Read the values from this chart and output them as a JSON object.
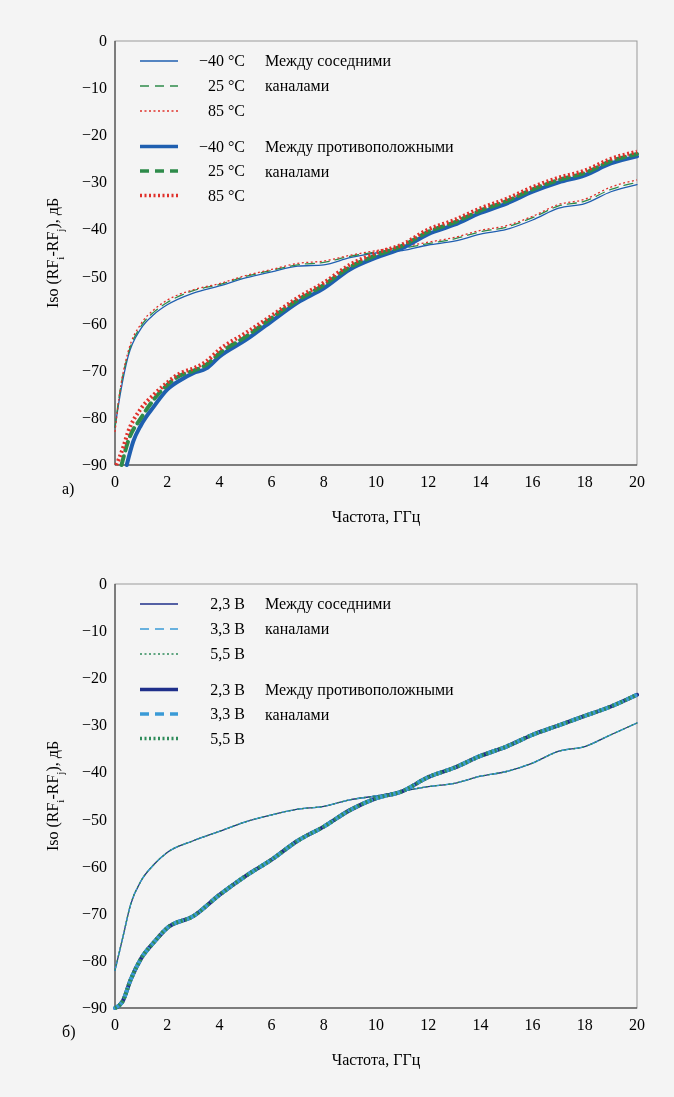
{
  "chart_data": [
    {
      "type": "line",
      "xlabel": "Частота, ГГц",
      "ylabel": "Iso (RF$_{i}$-RF$_{j}$), дБ",
      "xlim": [
        0,
        20
      ],
      "ylim": [
        -90,
        0
      ],
      "xticks": [
        0,
        2,
        4,
        6,
        8,
        10,
        12,
        14,
        16,
        18,
        20
      ],
      "yticks": [
        {
          "value": 0,
          "label": "0"
        },
        {
          "value": -10,
          "label": "−10"
        },
        {
          "value": -20,
          "label": "−20"
        },
        {
          "value": -30,
          "label": "−30"
        },
        {
          "value": -40,
          "label": "−40"
        },
        {
          "value": -50,
          "label": "−50"
        },
        {
          "value": -60,
          "label": "−60"
        },
        {
          "value": -70,
          "label": "−70"
        },
        {
          "value": -80,
          "label": "−80"
        },
        {
          "value": -90,
          "label": "−90"
        }
      ],
      "grid": false,
      "legend": "top left",
      "marker": "none",
      "annotations": [
        "а)",
        "Между соседними каналами",
        "Между противоположными каналами"
      ],
      "x": [
        0,
        0.2,
        0.5,
        1,
        1.5,
        2,
        3,
        4,
        5,
        6,
        7,
        8,
        9,
        10,
        11,
        12,
        13,
        14,
        15,
        16,
        17,
        18,
        19,
        20
      ],
      "series": [
        {
          "name": "−40 °C",
          "color": "#1f5fb0",
          "line_style": "solid",
          "values": [
            -82,
            -75,
            -67,
            -61,
            -58,
            -56,
            -53.5,
            -52,
            -50.3,
            -49,
            -47.8,
            -47.5,
            -46,
            -45,
            -44.5,
            -43.3,
            -42.5,
            -41,
            -40,
            -38,
            -35.5,
            -34.5,
            -32,
            -30.5
          ]
        },
        {
          "name": "25 °C",
          "color": "#2e8b4a",
          "line_style": "dashed",
          "values": [
            -82,
            -74,
            -66.5,
            -60.5,
            -57.5,
            -55.5,
            -53,
            -51.7,
            -50,
            -48.7,
            -47.5,
            -47,
            -45.7,
            -44.8,
            -44,
            -43,
            -42,
            -40.5,
            -39.5,
            -37.5,
            -35,
            -34,
            -31.5,
            -30
          ]
        },
        {
          "name": "85 °C",
          "color": "#e0302a",
          "line_style": "dotted",
          "values": [
            -83,
            -74,
            -66,
            -60,
            -57,
            -55,
            -52.8,
            -51.5,
            -49.8,
            -48.5,
            -47.2,
            -46.7,
            -45.5,
            -44.5,
            -43.7,
            -42.7,
            -41.7,
            -40.2,
            -39.2,
            -37.2,
            -34.7,
            -33.6,
            -31,
            -29.5
          ]
        },
        {
          "name": "−40 °C",
          "color": "#1f5fb0",
          "line_style": "solid",
          "x": [
            0.45,
            0.7,
            1,
            1.5,
            2,
            2.5,
            3,
            3.5,
            4,
            5,
            6,
            7,
            8,
            9,
            10,
            11,
            12,
            13,
            14,
            15,
            16,
            17,
            18,
            19,
            20
          ],
          "values": [
            -90,
            -85,
            -81.5,
            -77.5,
            -74,
            -72,
            -70.5,
            -69.5,
            -67,
            -63.5,
            -59.5,
            -55.5,
            -52.5,
            -48.5,
            -46,
            -44,
            -41,
            -39,
            -36.5,
            -34.5,
            -32,
            -30,
            -28.5,
            -26,
            -24.5
          ]
        },
        {
          "name": "25 °C",
          "color": "#2e8b4a",
          "line_style": "dashed",
          "x": [
            0.25,
            0.5,
            1,
            1.5,
            2,
            2.5,
            3,
            3.5,
            4,
            5,
            6,
            7,
            8,
            9,
            10,
            11,
            12,
            13,
            14,
            15,
            16,
            17,
            18,
            19,
            20
          ],
          "values": [
            -90,
            -85,
            -80,
            -76,
            -73,
            -71,
            -70,
            -68.7,
            -66.3,
            -62.8,
            -58.8,
            -55,
            -51.8,
            -48,
            -45.5,
            -43.5,
            -40.5,
            -38.5,
            -36,
            -34,
            -31.5,
            -29.5,
            -28,
            -25.5,
            -24
          ]
        },
        {
          "name": "85 °C",
          "color": "#e0302a",
          "line_style": "dotted",
          "x": [
            0.05,
            0.3,
            0.5,
            1,
            1.5,
            2,
            2.5,
            3,
            3.5,
            4,
            5,
            6,
            7,
            8,
            9,
            10,
            11,
            12,
            13,
            14,
            15,
            16,
            17,
            18,
            19,
            20
          ],
          "values": [
            -90,
            -86.5,
            -83,
            -78,
            -75,
            -72.5,
            -70.5,
            -69.5,
            -68,
            -65.5,
            -62,
            -58.3,
            -54.5,
            -51.3,
            -47.5,
            -45,
            -43.2,
            -40,
            -38,
            -35.5,
            -33.5,
            -31,
            -29,
            -27.5,
            -25,
            -23.5
          ]
        }
      ]
    },
    {
      "type": "line",
      "xlabel": "Частота, ГГц",
      "ylabel": "Iso (RF$_{i}$-RF$_{j}$), дБ",
      "xlim": [
        0,
        20
      ],
      "ylim": [
        -90,
        0
      ],
      "xticks": [
        0,
        2,
        4,
        6,
        8,
        10,
        12,
        14,
        16,
        18,
        20
      ],
      "yticks": [
        {
          "value": 0,
          "label": "0"
        },
        {
          "value": -10,
          "label": "−10"
        },
        {
          "value": -20,
          "label": "−20"
        },
        {
          "value": -30,
          "label": "−30"
        },
        {
          "value": -40,
          "label": "−40"
        },
        {
          "value": -50,
          "label": "−50"
        },
        {
          "value": -60,
          "label": "−60"
        },
        {
          "value": -70,
          "label": "−70"
        },
        {
          "value": -80,
          "label": "−80"
        },
        {
          "value": -90,
          "label": "−90"
        }
      ],
      "grid": false,
      "legend": "top left",
      "marker": "none",
      "annotations": [
        "б)",
        "Между соседними каналами",
        "Между противоположными каналами"
      ],
      "x": [
        0,
        0.3,
        0.6,
        1,
        1.5,
        2,
        3,
        4,
        5,
        6,
        7,
        8,
        9,
        10,
        11,
        12,
        13,
        14,
        15,
        16,
        17,
        18,
        19,
        20
      ],
      "series": [
        {
          "name": "2,3 В",
          "color": "#1f2f8a",
          "line_style": "solid",
          "values": [
            -82,
            -75,
            -68,
            -63,
            -59.5,
            -57,
            -54.5,
            -52.5,
            -50.5,
            -49,
            -47.8,
            -47.2,
            -45.8,
            -45,
            -44,
            -43,
            -42.3,
            -40.8,
            -39.8,
            -38,
            -35.5,
            -34.5,
            -32,
            -29.5
          ]
        },
        {
          "name": "3,3 В",
          "color": "#3a9ad6",
          "line_style": "dashed",
          "values": [
            -82,
            -75,
            -68,
            -63,
            -59.5,
            -57,
            -54.5,
            -52.5,
            -50.5,
            -49,
            -47.8,
            -47.2,
            -45.8,
            -45,
            -44,
            -43,
            -42.3,
            -40.8,
            -39.8,
            -38,
            -35.5,
            -34.5,
            -32,
            -29.5
          ]
        },
        {
          "name": "5,5 В",
          "color": "#2e8b5a",
          "line_style": "dotted",
          "values": [
            -82,
            -75,
            -68,
            -63,
            -59.5,
            -57,
            -54.5,
            -52.5,
            -50.5,
            -49,
            -47.8,
            -47.2,
            -45.8,
            -45,
            -44,
            -43,
            -42.3,
            -40.8,
            -39.8,
            -38,
            -35.5,
            -34.5,
            -32,
            -29.5
          ]
        },
        {
          "name": "2,3 В",
          "color": "#1f2f8a",
          "line_style": "solid",
          "values": [
            -90,
            -88.5,
            -84,
            -79.5,
            -76,
            -73,
            -70.5,
            -66,
            -62,
            -58.5,
            -54.5,
            -51.5,
            -48,
            -45.5,
            -44,
            -41,
            -39,
            -36.5,
            -34.5,
            -32,
            -30,
            -28,
            -26,
            -23.5
          ]
        },
        {
          "name": "3,3 В",
          "color": "#3a9ad6",
          "line_style": "dashed",
          "values": [
            -90,
            -88.5,
            -84,
            -79.5,
            -76,
            -73,
            -70.5,
            -66,
            -62,
            -58.5,
            -54.5,
            -51.5,
            -48,
            -45.5,
            -44,
            -41,
            -39,
            -36.5,
            -34.5,
            -32,
            -30,
            -28,
            -26,
            -23.5
          ]
        },
        {
          "name": "5,5 В",
          "color": "#2e8b5a",
          "line_style": "dotted",
          "values": [
            -90,
            -88.5,
            -84,
            -79.5,
            -76,
            -73,
            -70.5,
            -66,
            -62,
            -58.5,
            -54.5,
            -51.5,
            -48,
            -45.5,
            -44,
            -41,
            -39,
            -36.5,
            -34.5,
            -32,
            -30,
            -28,
            -26,
            -23.5
          ]
        }
      ]
    }
  ]
}
